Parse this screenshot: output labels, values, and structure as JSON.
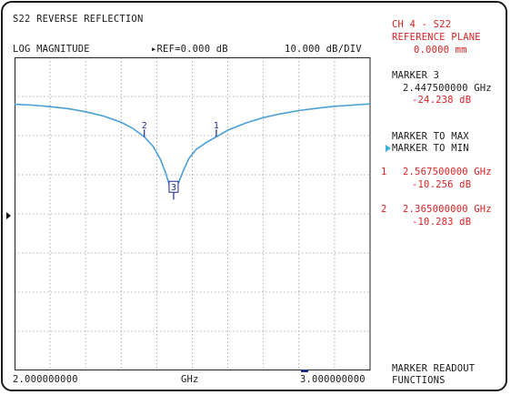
{
  "header": {
    "title": "S22 REVERSE REFLECTION",
    "format": "LOG MAGNITUDE",
    "ref_prefix": "▸REF=",
    "ref_value": "0.000 dB",
    "scale": "10.000 dB/DIV"
  },
  "channel_panel": {
    "channel": "CH 4 - S22",
    "ref_plane_label": "REFERENCE PLANE",
    "ref_plane_value": "0.0000 mm"
  },
  "active_marker": {
    "label": "MARKER 3",
    "frequency": "2.447500000 GHz",
    "value": "-24.238 dB"
  },
  "softkeys": {
    "marker_to_max": "MARKER TO MAX",
    "marker_to_min": "MARKER TO MIN",
    "readout_line1": "MARKER READOUT",
    "readout_line2": "FUNCTIONS"
  },
  "marker_list": [
    {
      "num": "1",
      "frequency": "2.567500000 GHz",
      "value": "-10.256 dB"
    },
    {
      "num": "2",
      "frequency": "2.365000000 GHz",
      "value": "-10.283 dB"
    }
  ],
  "x_axis": {
    "start": "2.000000000",
    "unit": "GHz",
    "stop": "3.000000000"
  },
  "trace_markers": [
    {
      "label": "1",
      "f": 2.5675,
      "db": -10.256
    },
    {
      "label": "2",
      "f": 2.365,
      "db": -10.283
    },
    {
      "label": "3",
      "f": 2.4475,
      "db": -24.238
    }
  ],
  "chart_data": {
    "type": "line",
    "xlim": [
      2.0,
      3.0
    ],
    "ylim": [
      -70,
      10
    ],
    "grid": true,
    "series": [
      {
        "x": [
          2.0,
          2.05,
          2.1,
          2.15,
          2.2,
          2.25,
          2.3,
          2.33,
          2.365,
          2.39,
          2.41,
          2.425,
          2.435,
          2.4475,
          2.46,
          2.475,
          2.49,
          2.51,
          2.54,
          2.5675,
          2.6,
          2.65,
          2.7,
          2.75,
          2.8,
          2.85,
          2.9,
          2.95,
          3.0
        ],
        "y": [
          -2.0,
          -2.2,
          -2.6,
          -3.1,
          -3.9,
          -5.0,
          -6.6,
          -8.0,
          -10.3,
          -12.8,
          -16.0,
          -19.5,
          -22.5,
          -24.2,
          -22.3,
          -18.9,
          -15.9,
          -13.6,
          -11.7,
          -10.3,
          -8.6,
          -6.8,
          -5.4,
          -4.4,
          -3.6,
          -3.0,
          -2.5,
          -2.2,
          -1.9
        ]
      }
    ],
    "colors": {
      "trace": "#4aa0d6",
      "marker": "#1d2d8a",
      "grid": "#9a9a9a",
      "frame": "#222222"
    }
  }
}
